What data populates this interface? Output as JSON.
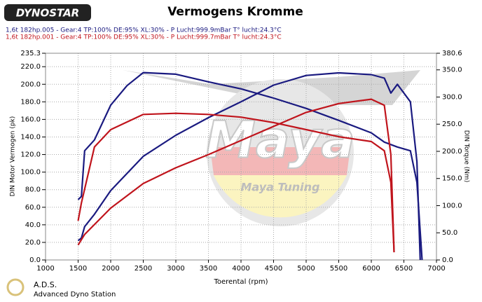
{
  "chart_data": {
    "type": "line",
    "title": "Vermogens Kromme",
    "logo": "DYNOSTAR",
    "run_info": [
      "1,6t 182hp.005 - Gear:4 TP:100% DE:95% XL:30%    - P Lucht:999.9mBar T° lucht:24.3°C",
      "1,6t 182hp.001 - Gear:4 TP:100% DE:95% XL:30%    - P Lucht:999.7mBar T° lucht:24.3°C"
    ],
    "run_colors": [
      "#1a1a80",
      "#c0141c"
    ],
    "xlabel": "Toerental (rpm)",
    "ylabel": "DIN Motor Vermogen (pk)",
    "y2label": "DIN Torque (Nm)",
    "watermark": {
      "logo": "Maya",
      "text": "Maya Tuning"
    },
    "footer": {
      "short": "A.D.S.",
      "long": "Advanced Dyno Station"
    },
    "xlim": [
      1000,
      7000
    ],
    "xticks": [
      1000,
      1500,
      2000,
      2500,
      3000,
      3500,
      4000,
      4500,
      5000,
      5500,
      6000,
      6500,
      7000
    ],
    "ylim": [
      0,
      235.3
    ],
    "yticks": [
      {
        "value": 0,
        "label": "0.0"
      },
      {
        "value": 20,
        "label": "20.0"
      },
      {
        "value": 40,
        "label": "40.0"
      },
      {
        "value": 60,
        "label": "60.0"
      },
      {
        "value": 80,
        "label": "80.0"
      },
      {
        "value": 100,
        "label": "100.0"
      },
      {
        "value": 120,
        "label": "120.0"
      },
      {
        "value": 140,
        "label": "140.0"
      },
      {
        "value": 160,
        "label": "160.0"
      },
      {
        "value": 180,
        "label": "180.0"
      },
      {
        "value": 200,
        "label": "200.0"
      },
      {
        "value": 220,
        "label": "220.0"
      },
      235.3
    ],
    "y2lim": [
      0,
      380.6
    ],
    "y2ticks": [
      {
        "value": 0,
        "label": "0.0"
      },
      {
        "value": 50,
        "label": "50.0"
      },
      {
        "value": 100,
        "label": "100.0"
      },
      {
        "value": 150,
        "label": "150.0"
      },
      {
        "value": 200,
        "label": "200.0"
      },
      {
        "value": 250,
        "label": "250.0"
      },
      {
        "value": 300,
        "label": "300.0"
      },
      {
        "value": 350,
        "label": "350.0"
      },
      380.6
    ],
    "grid": true,
    "series": [
      {
        "color": "#1a1a80",
        "axis": "y",
        "x": [
          1500,
          1550,
          1600,
          1750,
          2000,
          2500,
          3000,
          3500,
          4000,
          4500,
          5000,
          5500,
          6000,
          6200,
          6300,
          6400,
          6600,
          6700,
          6750
        ],
        "values": [
          22,
          25,
          38,
          52,
          79,
          118,
          142,
          162,
          180,
          199,
          210,
          213,
          211,
          207,
          190,
          200,
          180,
          112,
          0
        ]
      },
      {
        "color": "#1a1a80",
        "axis": "y2",
        "x": [
          1500,
          1550,
          1600,
          1750,
          2000,
          2250,
          2500,
          3000,
          3500,
          4000,
          4500,
          5000,
          5500,
          6000,
          6200,
          6400,
          6600,
          6700,
          6780
        ],
        "values": [
          111,
          117,
          201,
          221,
          285,
          321,
          345,
          342,
          328,
          315,
          298,
          279,
          257,
          234,
          217,
          208,
          201,
          143,
          0
        ]
      },
      {
        "color": "#c0141c",
        "axis": "y",
        "x": [
          1500,
          1600,
          2000,
          2500,
          3000,
          3500,
          4000,
          4500,
          5000,
          5500,
          6000,
          6200,
          6300,
          6350
        ],
        "values": [
          17,
          29,
          59,
          87,
          105,
          120,
          136,
          152,
          168,
          178,
          183,
          176,
          120,
          9
        ]
      },
      {
        "color": "#c0141c",
        "axis": "y2",
        "x": [
          1500,
          1550,
          1750,
          2000,
          2500,
          3000,
          3500,
          4000,
          4500,
          5000,
          5500,
          6000,
          6200,
          6300,
          6350
        ],
        "values": [
          72,
          105,
          208,
          240,
          268,
          270,
          268,
          263,
          253,
          240,
          227,
          218,
          201,
          143,
          14
        ]
      }
    ]
  }
}
